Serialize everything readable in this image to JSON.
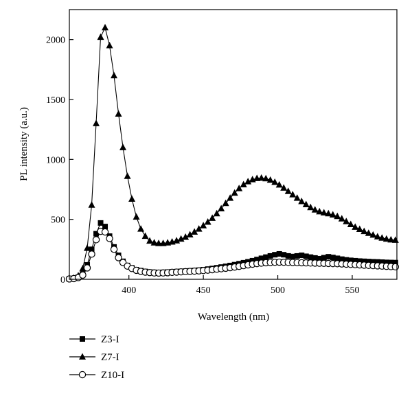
{
  "chart_data": {
    "type": "line",
    "title": "",
    "xlabel": "Wavelength (nm)",
    "ylabel": "PL intensity (a.u.)",
    "xlim": [
      360,
      580
    ],
    "ylim": [
      0,
      2250
    ],
    "x_ticks": [
      400,
      450,
      500,
      550
    ],
    "y_ticks": [
      0,
      500,
      1000,
      1500,
      2000
    ],
    "grid": false,
    "legend_position": "bottom-left, below plot",
    "series": [
      {
        "name": "Z3-I",
        "marker": "square",
        "x": [
          360,
          363,
          366,
          369,
          372,
          375,
          378,
          381,
          384,
          387,
          390,
          393,
          396,
          399,
          402,
          405,
          408,
          411,
          414,
          417,
          420,
          423,
          426,
          429,
          432,
          435,
          438,
          441,
          444,
          447,
          450,
          453,
          456,
          459,
          462,
          465,
          468,
          471,
          474,
          477,
          480,
          483,
          486,
          489,
          492,
          495,
          498,
          501,
          504,
          507,
          510,
          513,
          516,
          519,
          522,
          525,
          528,
          531,
          534,
          537,
          540,
          543,
          546,
          549,
          552,
          555,
          558,
          561,
          564,
          567,
          570,
          573,
          576,
          579
        ],
        "y": [
          5,
          8,
          18,
          45,
          120,
          250,
          380,
          470,
          440,
          360,
          270,
          200,
          150,
          115,
          95,
          80,
          72,
          65,
          60,
          58,
          57,
          58,
          60,
          62,
          64,
          66,
          68,
          70,
          73,
          76,
          80,
          85,
          90,
          96,
          102,
          108,
          115,
          122,
          130,
          138,
          146,
          155,
          165,
          175,
          185,
          195,
          205,
          212,
          205,
          195,
          190,
          195,
          200,
          192,
          185,
          178,
          172,
          180,
          188,
          182,
          175,
          168,
          162,
          158,
          155,
          152,
          150,
          148,
          146,
          145,
          143,
          141,
          140,
          139
        ]
      },
      {
        "name": "Z7-I",
        "marker": "triangle",
        "x": [
          360,
          363,
          366,
          369,
          372,
          375,
          378,
          381,
          384,
          387,
          390,
          393,
          396,
          399,
          402,
          405,
          408,
          411,
          414,
          417,
          420,
          423,
          426,
          429,
          432,
          435,
          438,
          441,
          444,
          447,
          450,
          453,
          456,
          459,
          462,
          465,
          468,
          471,
          474,
          477,
          480,
          483,
          486,
          489,
          492,
          495,
          498,
          501,
          504,
          507,
          510,
          513,
          516,
          519,
          522,
          525,
          528,
          531,
          534,
          537,
          540,
          543,
          546,
          549,
          552,
          555,
          558,
          561,
          564,
          567,
          570,
          573,
          576,
          579
        ],
        "y": [
          5,
          10,
          30,
          90,
          260,
          620,
          1300,
          2020,
          2100,
          1950,
          1700,
          1380,
          1100,
          860,
          670,
          520,
          420,
          360,
          320,
          305,
          300,
          300,
          305,
          312,
          322,
          336,
          352,
          372,
          395,
          420,
          448,
          478,
          510,
          548,
          590,
          634,
          678,
          720,
          758,
          790,
          815,
          832,
          842,
          845,
          840,
          828,
          810,
          788,
          762,
          734,
          706,
          678,
          650,
          624,
          600,
          580,
          565,
          555,
          548,
          538,
          525,
          505,
          482,
          458,
          436,
          418,
          400,
          385,
          370,
          356,
          345,
          336,
          330,
          327
        ]
      },
      {
        "name": "Z10-I",
        "marker": "circle",
        "x": [
          360,
          363,
          366,
          369,
          372,
          375,
          378,
          381,
          384,
          387,
          390,
          393,
          396,
          399,
          402,
          405,
          408,
          411,
          414,
          417,
          420,
          423,
          426,
          429,
          432,
          435,
          438,
          441,
          444,
          447,
          450,
          453,
          456,
          459,
          462,
          465,
          468,
          471,
          474,
          477,
          480,
          483,
          486,
          489,
          492,
          495,
          498,
          501,
          504,
          507,
          510,
          513,
          516,
          519,
          522,
          525,
          528,
          531,
          534,
          537,
          540,
          543,
          546,
          549,
          552,
          555,
          558,
          561,
          564,
          567,
          570,
          573,
          576,
          579
        ],
        "y": [
          3,
          6,
          14,
          35,
          95,
          210,
          330,
          400,
          395,
          340,
          250,
          180,
          140,
          110,
          90,
          75,
          66,
          60,
          56,
          53,
          52,
          53,
          55,
          58,
          60,
          62,
          64,
          66,
          68,
          70,
          73,
          76,
          80,
          84,
          88,
          92,
          97,
          102,
          108,
          114,
          120,
          126,
          131,
          135,
          138,
          140,
          142,
          143,
          142,
          141,
          140,
          139,
          138,
          137,
          136,
          135,
          134,
          133,
          132,
          131,
          130,
          128,
          126,
          124,
          122,
          120,
          118,
          116,
          114,
          112,
          110,
          108,
          106,
          104
        ]
      }
    ]
  }
}
